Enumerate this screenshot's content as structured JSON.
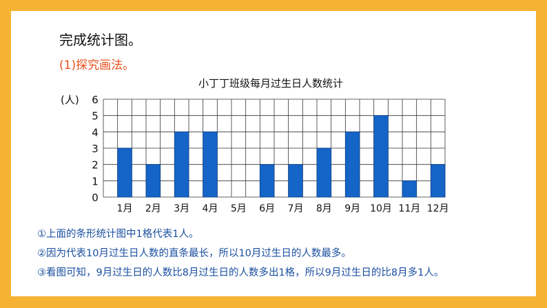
{
  "slide": {
    "heading": "完成统计图。",
    "subheading": "(1)探究画法。"
  },
  "chart_data": {
    "type": "bar",
    "title": "小丁丁班级每月过生日人数统计",
    "ylabel": "(人)",
    "xlabel": "",
    "categories": [
      "1月",
      "2月",
      "3月",
      "4月",
      "5月",
      "6月",
      "7月",
      "8月",
      "9月",
      "10月",
      "11月",
      "12月"
    ],
    "values": [
      3,
      2,
      4,
      4,
      0,
      2,
      2,
      3,
      4,
      5,
      1,
      2
    ],
    "yticks": [
      "0",
      "1",
      "2",
      "3",
      "4",
      "5",
      "6"
    ],
    "ylim": [
      0,
      6
    ],
    "grid": true,
    "bar_color": "#1565C8"
  },
  "notes": [
    "①上面的条形统计图中1格代表1人。",
    "②因为代表10月过生日人数的直条最长，所以10月过生日的人数最多。",
    "③看图可知，9月过生日的人数比8月过生日的人数多出1格，所以9月过生日的比8月多1人。"
  ]
}
